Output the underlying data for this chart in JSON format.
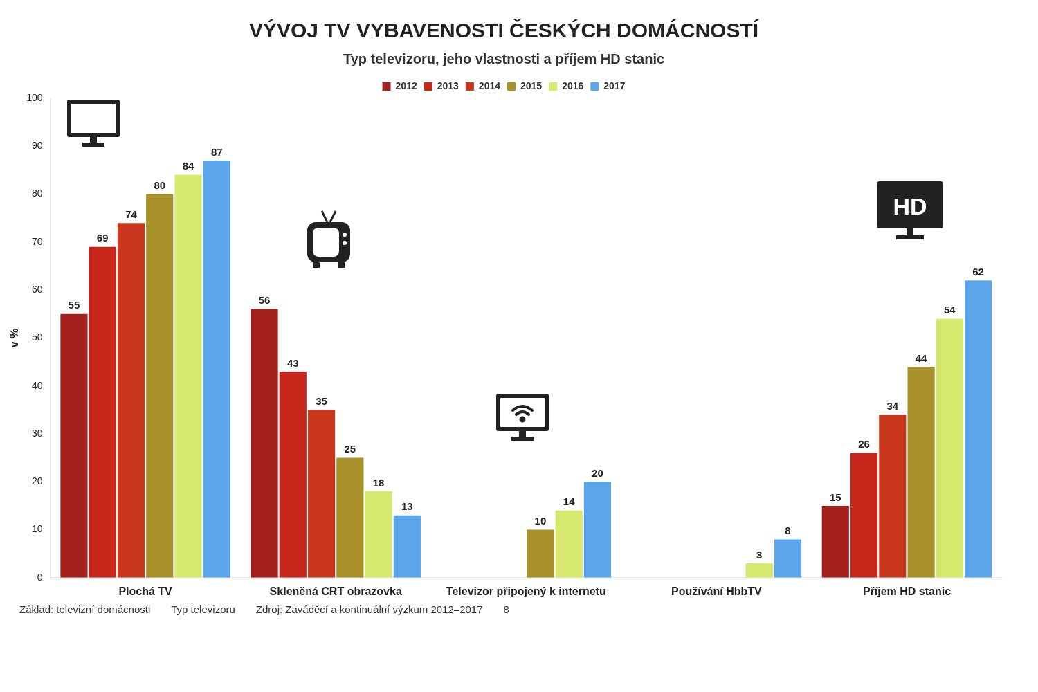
{
  "chart_data": {
    "type": "bar",
    "title": "VÝVOJ TV VYBAVENOSTI ČESKÝCH DOMÁCNOSTÍ",
    "subtitle": "Typ televizoru, jeho vlastnosti a příjem HD stanic",
    "ylabel": "v %",
    "categories": [
      "Plochá TV",
      "Skleněná CRT obrazovka",
      "Televizor připojený k internetu",
      "Používání HbbTV",
      "Příjem HD stanic"
    ],
    "series": [
      {
        "name": "2012",
        "color": "#a3201c",
        "values": [
          55,
          56,
          null,
          null,
          15
        ]
      },
      {
        "name": "2013",
        "color": "#c8261a",
        "values": [
          69,
          43,
          null,
          null,
          26
        ]
      },
      {
        "name": "2014",
        "color": "#c9381e",
        "values": [
          74,
          35,
          null,
          null,
          34
        ]
      },
      {
        "name": "2015",
        "color": "#a8902a",
        "values": [
          80,
          25,
          10,
          null,
          44
        ]
      },
      {
        "name": "2016",
        "color": "#d6e86e",
        "values": [
          84,
          18,
          14,
          3,
          54
        ]
      },
      {
        "name": "2017",
        "color": "#5ba6ea",
        "values": [
          87,
          13,
          20,
          8,
          62
        ]
      }
    ],
    "ylim": [
      0,
      100
    ],
    "yticks": [
      0,
      10,
      20,
      30,
      40,
      50,
      60,
      70,
      80,
      90,
      100
    ],
    "grid": false,
    "legend": "top",
    "data_labels": true,
    "annotations": [
      "Základ: televizní domácnosti",
      "Typ televizoru",
      "Zdroj: Zaváděcí a kontinuální výzkum 2012–2017",
      "8",
      "HD"
    ]
  }
}
